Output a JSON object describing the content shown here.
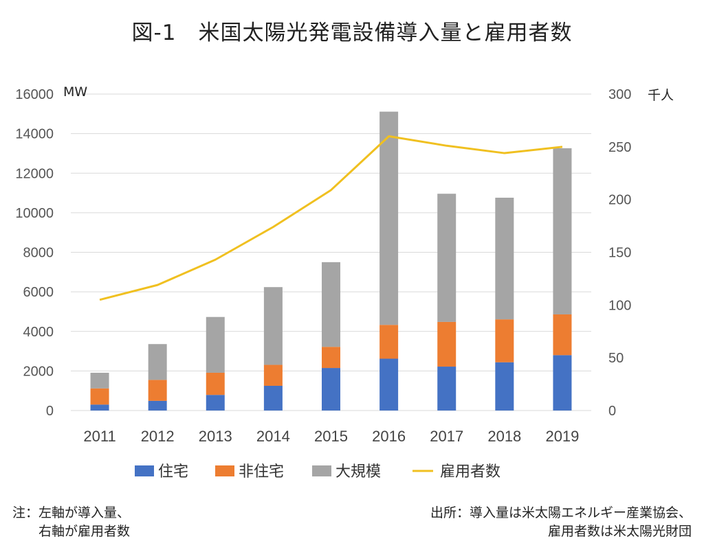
{
  "title": "図-1　米国太陽光発電設備導入量と雇用者数",
  "notes": {
    "left": [
      "注：左軸が導入量、",
      "　　右軸が雇用者数"
    ],
    "right": [
      "出所：導入量は米太陽エネルギー産業協会、",
      "雇用者数は米太陽光財団"
    ]
  },
  "colors": {
    "residential": "#4472C4",
    "non_residential": "#ED7D31",
    "utility": "#A5A5A5",
    "employment": "#F0C020",
    "grid": "#D9D9D9"
  },
  "chart_data": {
    "type": "bar",
    "stacked": true,
    "categories": [
      "2011",
      "2012",
      "2013",
      "2014",
      "2015",
      "2016",
      "2017",
      "2018",
      "2019"
    ],
    "series": [
      {
        "name": "住宅",
        "axis": "left",
        "values": [
          300,
          490,
          790,
          1250,
          2150,
          2620,
          2220,
          2440,
          2800
        ]
      },
      {
        "name": "非住宅",
        "axis": "left",
        "values": [
          820,
          1060,
          1120,
          1060,
          1070,
          1710,
          2260,
          2170,
          2060
        ]
      },
      {
        "name": "大規模",
        "axis": "left",
        "values": [
          790,
          1810,
          2820,
          3930,
          4280,
          10780,
          6480,
          6150,
          8400
        ]
      },
      {
        "name": "雇用者数",
        "type": "line",
        "axis": "right",
        "values": [
          105,
          119,
          143,
          174,
          209,
          260,
          251,
          244,
          250
        ]
      }
    ],
    "y_left": {
      "unit": "MW",
      "ylim": [
        0,
        16000
      ],
      "ticks": [
        "0",
        "2000",
        "4000",
        "6000",
        "8000",
        "10000",
        "12000",
        "14000",
        "16000"
      ]
    },
    "y_right": {
      "unit": "千人",
      "ylim": [
        0,
        300
      ],
      "ticks": [
        "0",
        "50",
        "100",
        "150",
        "200",
        "250",
        "300"
      ]
    },
    "grid": true,
    "legend": "bottom"
  }
}
